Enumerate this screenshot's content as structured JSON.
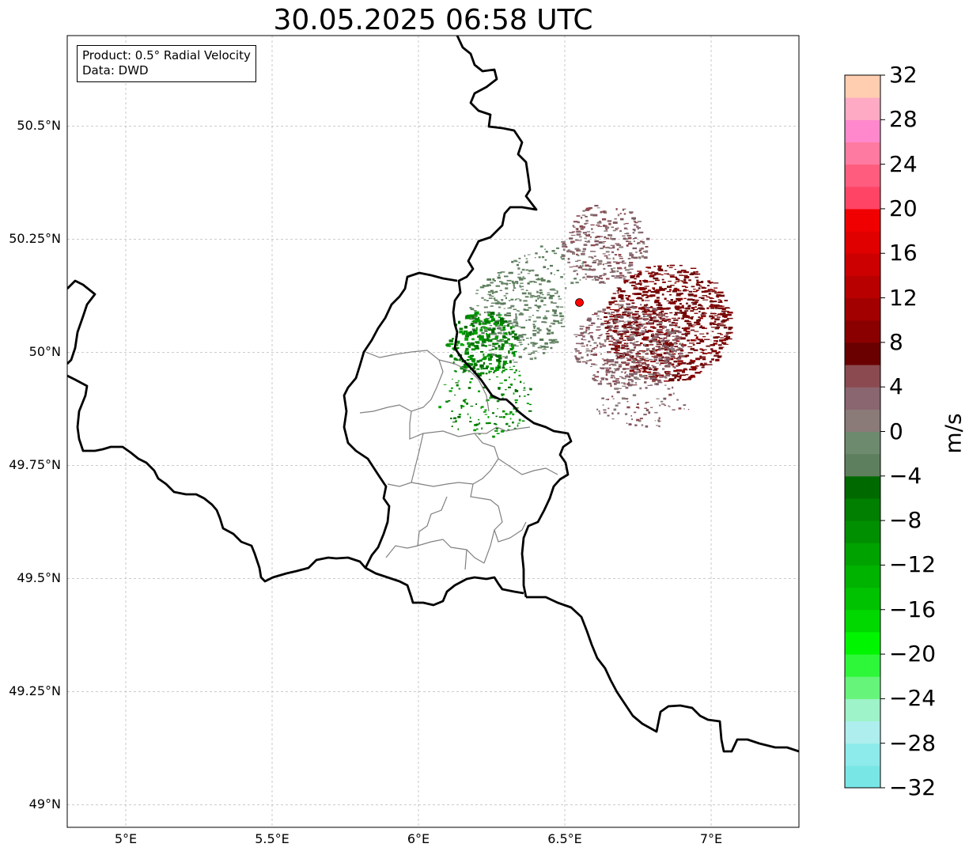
{
  "title": "30.05.2025 06:58 UTC",
  "info_box": {
    "product": "Product: 0.5° Radial Velocity",
    "data": "Data: DWD"
  },
  "map": {
    "type": "radar-velocity-map",
    "extent_lon": [
      4.8,
      7.3
    ],
    "extent_lat": [
      48.95,
      50.7
    ],
    "lon_ticks": [
      5.0,
      5.5,
      6.0,
      6.5,
      7.0
    ],
    "lon_tick_labels": [
      "5°E",
      "5.5°E",
      "6°E",
      "6.5°E",
      "7°E"
    ],
    "lat_ticks": [
      50.5,
      50.25,
      50.0,
      49.75,
      49.5,
      49.25,
      49.0
    ],
    "lat_tick_labels": [
      "50.5°N",
      "50.25°N",
      "50°N",
      "49.75°N",
      "49.5°N",
      "49.25°N",
      "49°N"
    ],
    "gridlines": true,
    "radar_site": {
      "lon": 6.55,
      "lat": 50.11,
      "color": "#ff0000"
    }
  },
  "colorbar": {
    "unit": "m/s",
    "vmin": -32,
    "vmax": 32,
    "step": 4,
    "tick_labels": [
      "32",
      "28",
      "24",
      "20",
      "16",
      "12",
      "8",
      "4",
      "0",
      "−4",
      "−8",
      "−12",
      "−16",
      "−20",
      "−24",
      "−28",
      "−32"
    ],
    "colors_bottom_to_top": [
      "#79e6e6",
      "#8eebeb",
      "#aeeeee",
      "#9ef3c8",
      "#66f57a",
      "#2ef73a",
      "#00f500",
      "#00d800",
      "#00c200",
      "#00b300",
      "#00a200",
      "#008f00",
      "#007f00",
      "#006a00",
      "#5e7f5e",
      "#6e8a6e",
      "#8a7a78",
      "#8a6670",
      "#8a4a50",
      "#6a0000",
      "#8a0000",
      "#a20000",
      "#b80000",
      "#cc0000",
      "#e00000",
      "#f00000",
      "#ff4466",
      "#ff5c7e",
      "#ff7aa0",
      "#ff88cc",
      "#ffaac4",
      "#ffcdb0"
    ]
  }
}
